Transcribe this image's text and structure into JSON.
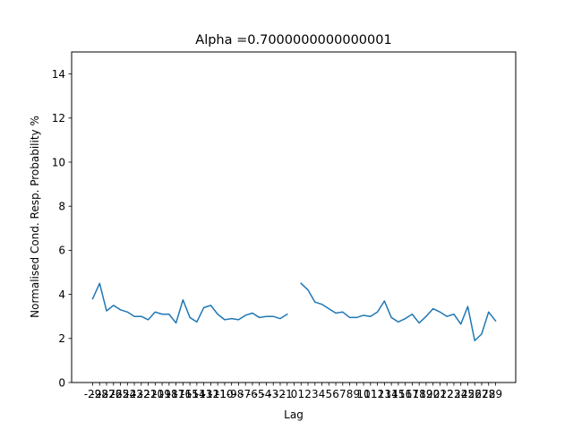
{
  "chart_data": {
    "type": "line",
    "title": "Alpha =0.7000000000000001",
    "xlabel": "Lag",
    "ylabel": "Normalised Cond. Resp. Probability %",
    "ylim": [
      0,
      15
    ],
    "yticks": [
      0,
      2,
      4,
      6,
      8,
      10,
      12,
      14
    ],
    "grid": false,
    "line_color": "#1f77b4",
    "x": [
      -29,
      -28,
      -27,
      -26,
      -25,
      -24,
      -23,
      -22,
      -21,
      -20,
      -19,
      -18,
      -17,
      -16,
      -15,
      -14,
      -13,
      -12,
      -11,
      -10,
      -9,
      -8,
      -7,
      -6,
      -5,
      -4,
      -3,
      -2,
      -1,
      0,
      1,
      2,
      3,
      4,
      5,
      6,
      7,
      8,
      9,
      10,
      11,
      12,
      13,
      14,
      15,
      16,
      17,
      18,
      19,
      20,
      21,
      22,
      23,
      24,
      25,
      26,
      27,
      28,
      29
    ],
    "series": [
      {
        "values": [
          3.8,
          4.5,
          3.25,
          3.5,
          3.3,
          3.2,
          3.0,
          3.0,
          2.85,
          3.2,
          3.1,
          3.1,
          2.7,
          3.75,
          2.95,
          2.75,
          3.4,
          3.5,
          3.1,
          2.85,
          2.9,
          2.85,
          3.05,
          3.15,
          2.95,
          3.0,
          3.0,
          2.9,
          3.1,
          null,
          4.5,
          4.2,
          3.65,
          3.55,
          3.35,
          3.15,
          3.2,
          2.95,
          2.95,
          3.05,
          3.0,
          3.2,
          3.7,
          2.95,
          2.75,
          2.9,
          3.1,
          2.7,
          3.0,
          3.35,
          3.2,
          3.0,
          3.1,
          2.65,
          3.45,
          1.9,
          2.2,
          3.2,
          2.8
        ]
      }
    ]
  }
}
